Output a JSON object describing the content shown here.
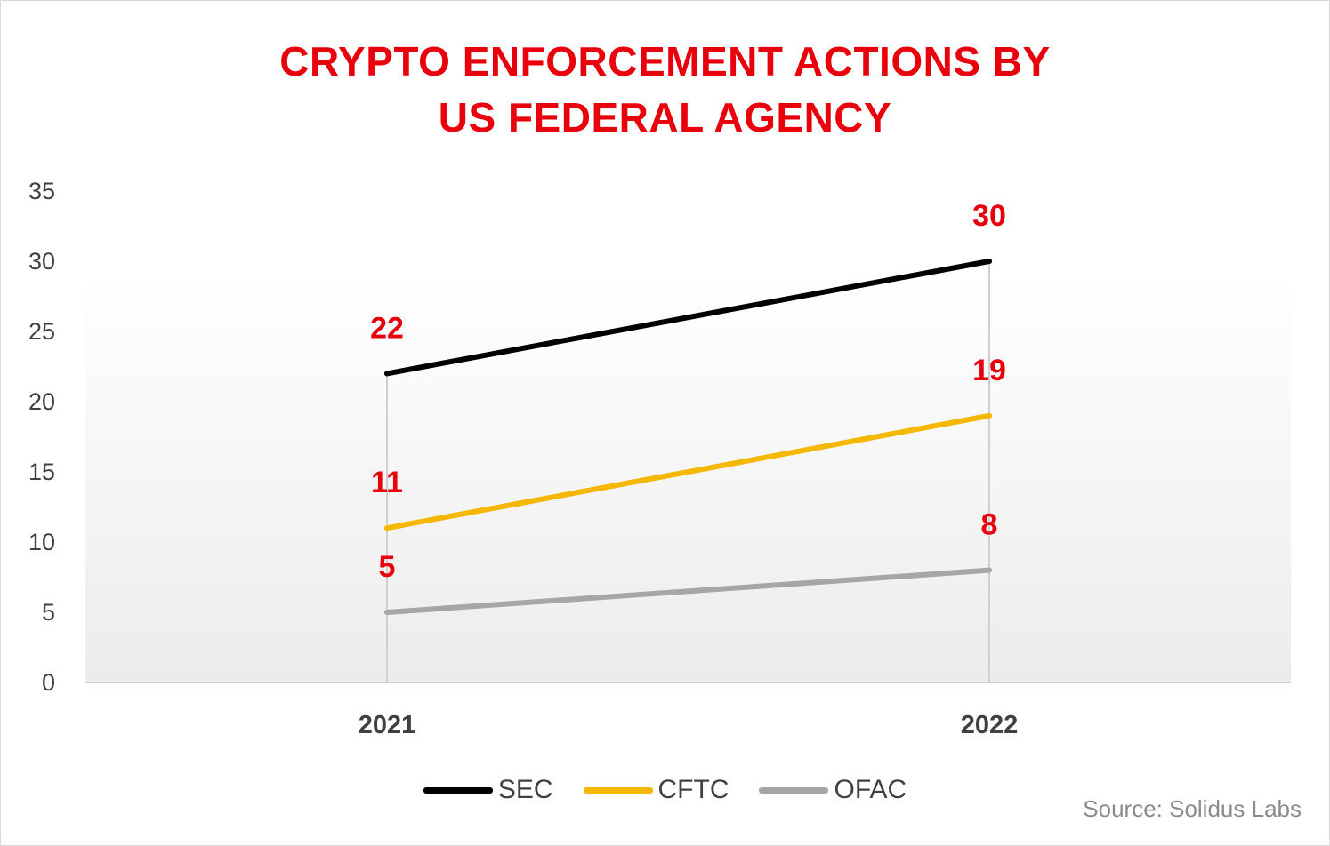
{
  "chart_data": {
    "type": "line",
    "title_lines": [
      "CRYPTO ENFORCEMENT ACTIONS BY",
      "US FEDERAL AGENCY"
    ],
    "categories": [
      "2021",
      "2022"
    ],
    "series": [
      {
        "name": "SEC",
        "values": [
          22,
          30
        ],
        "color": "#000000"
      },
      {
        "name": "CFTC",
        "values": [
          11,
          19
        ],
        "color": "#f5b800"
      },
      {
        "name": "OFAC",
        "values": [
          5,
          8
        ],
        "color": "#a6a6a6"
      }
    ],
    "ylim": [
      0,
      35
    ],
    "yticks": [
      0,
      5,
      10,
      15,
      20,
      25,
      30,
      35
    ],
    "data_label_color": "#e8000d",
    "grid": false,
    "legend_position": "bottom",
    "source": "Source: Solidus Labs"
  }
}
